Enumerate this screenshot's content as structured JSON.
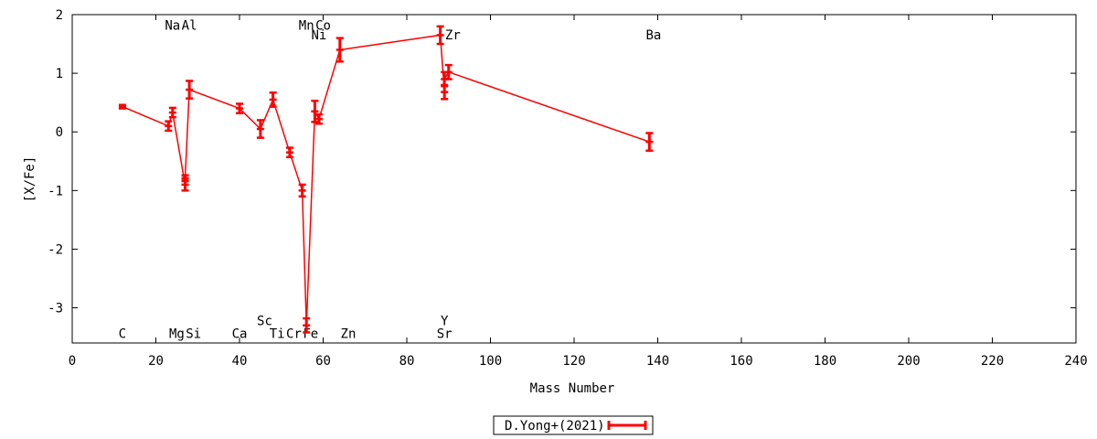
{
  "chart_data": {
    "type": "line",
    "xlabel": "Mass Number",
    "ylabel": "[X/Fe]",
    "xlim": [
      0,
      240
    ],
    "ylim": [
      -3.6,
      2
    ],
    "xticks": [
      "0",
      "20",
      "40",
      "60",
      "80",
      "100",
      "120",
      "140",
      "160",
      "180",
      "200",
      "220",
      "240"
    ],
    "yticks": [
      "2",
      "1",
      "0",
      "-1",
      "-2",
      "-3"
    ],
    "grid": false,
    "legend_position": "bottom-center",
    "series": [
      {
        "name": "D.Yong+(2021)",
        "color": "#ff0000",
        "points": [
          {
            "x": 12,
            "y": 0.43,
            "err": 0.03
          },
          {
            "x": 23,
            "y": 0.1,
            "err": 0.08
          },
          {
            "x": 24,
            "y": 0.33,
            "err": 0.08
          },
          {
            "x": 27,
            "y": -0.9,
            "err": 0.1
          },
          {
            "x": 27,
            "y": -0.79,
            "err": 0.05
          },
          {
            "x": 28,
            "y": 0.72,
            "err": 0.15
          },
          {
            "x": 40,
            "y": 0.4,
            "err": 0.08
          },
          {
            "x": 45,
            "y": 0.05,
            "err": 0.15
          },
          {
            "x": 48,
            "y": 0.55,
            "err": 0.12
          },
          {
            "x": 52,
            "y": -0.35,
            "err": 0.08
          },
          {
            "x": 55,
            "y": -1.0,
            "err": 0.1
          },
          {
            "x": 56,
            "y": -3.3,
            "err": 0.12
          },
          {
            "x": 58,
            "y": 0.35,
            "err": 0.18
          },
          {
            "x": 59,
            "y": 0.22,
            "err": 0.08
          },
          {
            "x": 64,
            "y": 1.4,
            "err": 0.2
          },
          {
            "x": 88,
            "y": 1.65,
            "err": 0.15
          },
          {
            "x": 89,
            "y": 0.68,
            "err": 0.12
          },
          {
            "x": 89,
            "y": 0.9,
            "err": 0.12
          },
          {
            "x": 90,
            "y": 1.02,
            "err": 0.12
          },
          {
            "x": 138,
            "y": -0.17,
            "err": 0.15
          }
        ]
      }
    ],
    "annotations": [
      {
        "text": "C",
        "x": 12,
        "y": -3.44
      },
      {
        "text": "Na",
        "x": 24,
        "y": 1.82
      },
      {
        "text": "Mg",
        "x": 25,
        "y": -3.44
      },
      {
        "text": "Al",
        "x": 28,
        "y": 1.82
      },
      {
        "text": "Si",
        "x": 29,
        "y": -3.44
      },
      {
        "text": "Ca",
        "x": 40,
        "y": -3.44
      },
      {
        "text": "Sc",
        "x": 46,
        "y": -3.22
      },
      {
        "text": "Ti",
        "x": 49,
        "y": -3.44
      },
      {
        "text": "Cr",
        "x": 53,
        "y": -3.44
      },
      {
        "text": "Fe",
        "x": 57,
        "y": -3.44
      },
      {
        "text": "Mn",
        "x": 56,
        "y": 1.82
      },
      {
        "text": "Co",
        "x": 60,
        "y": 1.82
      },
      {
        "text": "Ni",
        "x": 59,
        "y": 1.66
      },
      {
        "text": "Zn",
        "x": 66,
        "y": -3.44
      },
      {
        "text": "Y",
        "x": 89,
        "y": -3.22
      },
      {
        "text": "Sr",
        "x": 89,
        "y": -3.44
      },
      {
        "text": "Zr",
        "x": 91,
        "y": 1.66
      },
      {
        "text": "Ba",
        "x": 139,
        "y": 1.66
      }
    ]
  }
}
